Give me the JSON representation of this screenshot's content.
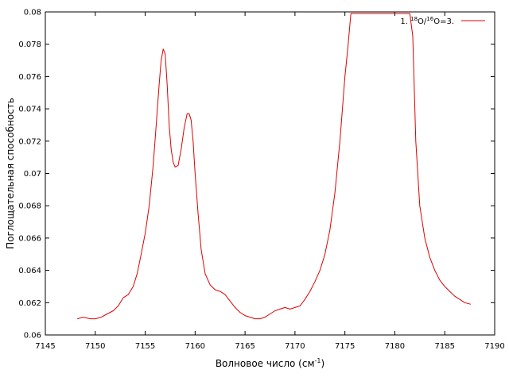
{
  "chart_data": {
    "type": "line",
    "title": "",
    "xlabel": "Волновое число (см",
    "xlabel_sup": "-1",
    "xlabel_close": ")",
    "ylabel": "Поглощательная способность",
    "xlim": [
      7145,
      7190
    ],
    "ylim": [
      0.06,
      0.08
    ],
    "x_ticks": [
      "7145",
      "7150",
      "7155",
      "7160",
      "7165",
      "7170",
      "7175",
      "7180",
      "7185",
      "7190"
    ],
    "y_ticks": [
      "0.06",
      "0.062",
      "0.064",
      "0.066",
      "0.068",
      "0.07",
      "0.072",
      "0.074",
      "0.076",
      "0.078",
      "0.08"
    ],
    "grid": false,
    "legend_position": "top-right",
    "series": [
      {
        "legend": [
          "1. ",
          "18",
          "O/",
          "16",
          "O=3."
        ],
        "color": "#e00000",
        "x": [
          7148.2,
          7148.8,
          7149.5,
          7150,
          7150.6,
          7151.2,
          7151.8,
          7152.3,
          7152.8,
          7153.3,
          7153.8,
          7154.2,
          7154.6,
          7155,
          7155.4,
          7155.8,
          7156.1,
          7156.4,
          7156.6,
          7156.8,
          7157,
          7157.2,
          7157.4,
          7157.6,
          7157.8,
          7158,
          7158.3,
          7158.6,
          7158.9,
          7159.2,
          7159.4,
          7159.6,
          7159.8,
          7160,
          7160.3,
          7160.6,
          7161,
          7161.5,
          7162,
          7162.5,
          7163,
          7163.5,
          7164,
          7164.5,
          7165,
          7165.5,
          7166,
          7166.5,
          7167,
          7167.5,
          7168,
          7168.5,
          7169,
          7169.5,
          7170,
          7170.5,
          7171,
          7171.5,
          7172,
          7172.5,
          7173,
          7173.5,
          7174,
          7174.5,
          7175,
          7175.3,
          7175.6,
          7176,
          7177,
          7178,
          7179,
          7180,
          7181,
          7181.5,
          7181.8,
          7182.1,
          7182.5,
          7183,
          7183.5,
          7184,
          7184.5,
          7185,
          7185.5,
          7186,
          7186.5,
          7187,
          7187.6
        ],
        "y": [
          0.061,
          0.0611,
          0.061,
          0.061,
          0.0611,
          0.0613,
          0.0615,
          0.0618,
          0.0623,
          0.0625,
          0.063,
          0.0638,
          0.065,
          0.0663,
          0.068,
          0.0705,
          0.073,
          0.0755,
          0.077,
          0.0777,
          0.0774,
          0.0755,
          0.073,
          0.0715,
          0.0707,
          0.0704,
          0.0705,
          0.0715,
          0.0728,
          0.0737,
          0.0737,
          0.0733,
          0.072,
          0.07,
          0.0675,
          0.0653,
          0.0638,
          0.0631,
          0.0628,
          0.0627,
          0.0625,
          0.0621,
          0.0617,
          0.0614,
          0.0612,
          0.0611,
          0.061,
          0.061,
          0.0611,
          0.0613,
          0.0615,
          0.0616,
          0.0617,
          0.0616,
          0.0617,
          0.0618,
          0.0622,
          0.0627,
          0.0633,
          0.064,
          0.065,
          0.0665,
          0.0688,
          0.072,
          0.076,
          0.0778,
          0.0799,
          0.0799,
          0.0799,
          0.0799,
          0.0799,
          0.0799,
          0.0799,
          0.0799,
          0.0785,
          0.072,
          0.068,
          0.066,
          0.0648,
          0.064,
          0.0634,
          0.063,
          0.0627,
          0.0624,
          0.0622,
          0.062,
          0.0619
        ]
      }
    ]
  }
}
